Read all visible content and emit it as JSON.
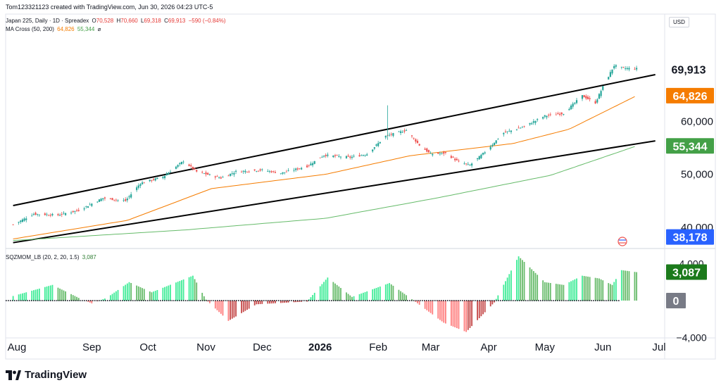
{
  "header": {
    "created_by": "Tom123321123 created with TradingView.com, Jun 30, 2026 04:23 UTC-5"
  },
  "instrument": {
    "title": "Japan 225, Daily · 1D · Spreadex",
    "open_label": "O",
    "open": "70,528",
    "high_label": "H",
    "high": "70,660",
    "low_label": "L",
    "low": "69,318",
    "close_label": "C",
    "close": "69,913",
    "change": "−590 (−0.84%)"
  },
  "ma_legend": {
    "label": "MA Cross (50, 200)",
    "fast": "64,826",
    "slow": "55,344",
    "symbol": "⌀"
  },
  "sqz_legend": {
    "label": "SQZMOM_LB (20, 2, 20, 1.5)",
    "value": "3,087"
  },
  "currency": "USD",
  "brand": "TradingView",
  "colors": {
    "up": "#26a69a",
    "down": "#ef5350",
    "ma_fast": "#f57c00",
    "ma_slow": "#66bb6a",
    "price_badge": "#f57c00",
    "ma_badge_green": "#43a047",
    "low_badge": "#2962ff",
    "hist_bright_green": "#00e676",
    "hist_dark_green": "#4caf50",
    "hist_red": "#ff5252",
    "hist_dark_red": "#b71c1c",
    "momentum_badge": "#1b7a1b",
    "zero_badge": "#787b86"
  },
  "chart_data": [
    {
      "type": "candlestick",
      "title": "Japan 225, Daily",
      "x_axis_labels": [
        "Aug",
        "Sep",
        "Oct",
        "Nov",
        "Dec",
        "2026",
        "Feb",
        "Mar",
        "Apr",
        "May",
        "Jun",
        "Jul"
      ],
      "y_axis_labels": [
        "40,000",
        "50,000",
        "60,000",
        "69,913"
      ],
      "price_badges": [
        {
          "label": "69,913",
          "kind": "last-price"
        },
        {
          "label": "64,826",
          "kind": "ma-fast"
        },
        {
          "label": "55,344",
          "kind": "ma-slow"
        },
        {
          "label": "38,178",
          "kind": "low"
        }
      ],
      "ylim": [
        35000,
        75000
      ],
      "anchors": [
        [
          "2025-08-01",
          40500
        ],
        [
          "2025-08-12",
          42500
        ],
        [
          "2025-08-25",
          42300
        ],
        [
          "2025-09-05",
          43200
        ],
        [
          "2025-09-18",
          45500
        ],
        [
          "2025-09-30",
          45000
        ],
        [
          "2025-10-08",
          48300
        ],
        [
          "2025-10-20",
          49500
        ],
        [
          "2025-10-31",
          52500
        ],
        [
          "2025-11-07",
          50500
        ],
        [
          "2025-11-20",
          49300
        ],
        [
          "2025-11-28",
          50500
        ],
        [
          "2025-12-12",
          50800
        ],
        [
          "2025-12-22",
          50200
        ],
        [
          "2026-01-05",
          51500
        ],
        [
          "2026-01-14",
          53600
        ],
        [
          "2026-01-28",
          53200
        ],
        [
          "2026-02-06",
          53800
        ],
        [
          "2026-02-16",
          57200
        ],
        [
          "2026-02-27",
          58300
        ],
        [
          "2026-03-06",
          55500
        ],
        [
          "2026-03-12",
          53800
        ],
        [
          "2026-03-20",
          54000
        ],
        [
          "2026-03-27",
          52300
        ],
        [
          "2026-04-02",
          51700
        ],
        [
          "2026-04-10",
          54200
        ],
        [
          "2026-04-20",
          57800
        ],
        [
          "2026-05-01",
          59000
        ],
        [
          "2026-05-12",
          61000
        ],
        [
          "2026-05-22",
          61500
        ],
        [
          "2026-06-01",
          64800
        ],
        [
          "2026-06-08",
          63500
        ],
        [
          "2026-06-12",
          66500
        ],
        [
          "2026-06-18",
          70500
        ],
        [
          "2026-06-23",
          70000
        ],
        [
          "2026-06-30",
          69913
        ]
      ],
      "series": [
        {
          "name": "MA 50",
          "anchors": [
            [
              "2025-08-01",
              37800
            ],
            [
              "2025-10-01",
              41300
            ],
            [
              "2025-11-15",
              47300
            ],
            [
              "2026-01-15",
              50000
            ],
            [
              "2026-03-01",
              53500
            ],
            [
              "2026-04-25",
              55800
            ],
            [
              "2026-05-25",
              58500
            ],
            [
              "2026-06-30",
              64826
            ]
          ]
        },
        {
          "name": "MA 200",
          "anchors": [
            [
              "2025-08-01",
              37500
            ],
            [
              "2025-11-01",
              39500
            ],
            [
              "2026-01-15",
              41700
            ],
            [
              "2026-03-15",
              45500
            ],
            [
              "2026-05-15",
              49800
            ],
            [
              "2026-06-30",
              55344
            ]
          ]
        }
      ],
      "trendlines": [
        {
          "from": [
            "2025-08-01",
            44100
          ],
          "to": [
            "2026-07-10",
            68800
          ]
        },
        {
          "from": [
            "2025-08-01",
            37100
          ],
          "to": [
            "2026-07-10",
            56300
          ]
        }
      ]
    },
    {
      "type": "bar",
      "title": "SQZMOM_LB (20, 2, 20, 1.5)",
      "y_axis_labels": [
        "4,000",
        "0",
        "−4,000"
      ],
      "value_badges": [
        {
          "label": "3,087",
          "kind": "last"
        },
        {
          "label": "0",
          "kind": "zero"
        }
      ],
      "ylim": [
        -4200,
        4800
      ],
      "anchors": [
        [
          "2025-08-01",
          500
        ],
        [
          "2025-08-22",
          1700
        ],
        [
          "2025-09-05",
          300
        ],
        [
          "2025-09-12",
          -300
        ],
        [
          "2025-09-20",
          300
        ],
        [
          "2025-10-02",
          2000
        ],
        [
          "2025-10-14",
          900
        ],
        [
          "2025-11-05",
          2700
        ],
        [
          "2025-11-12",
          100
        ],
        [
          "2025-11-24",
          -2200
        ],
        [
          "2025-12-09",
          -400
        ],
        [
          "2026-01-05",
          -100
        ],
        [
          "2026-01-16",
          2500
        ],
        [
          "2026-01-29",
          400
        ],
        [
          "2026-02-18",
          1900
        ],
        [
          "2026-03-03",
          0
        ],
        [
          "2026-03-19",
          -2400
        ],
        [
          "2026-03-31",
          -3400
        ],
        [
          "2026-04-15",
          -200
        ],
        [
          "2026-04-28",
          4800
        ],
        [
          "2026-05-12",
          2000
        ],
        [
          "2026-05-22",
          1700
        ],
        [
          "2026-06-01",
          2700
        ],
        [
          "2026-06-10",
          2400
        ],
        [
          "2026-06-17",
          1700
        ],
        [
          "2026-06-22",
          3300
        ],
        [
          "2026-06-30",
          3087
        ]
      ]
    }
  ]
}
